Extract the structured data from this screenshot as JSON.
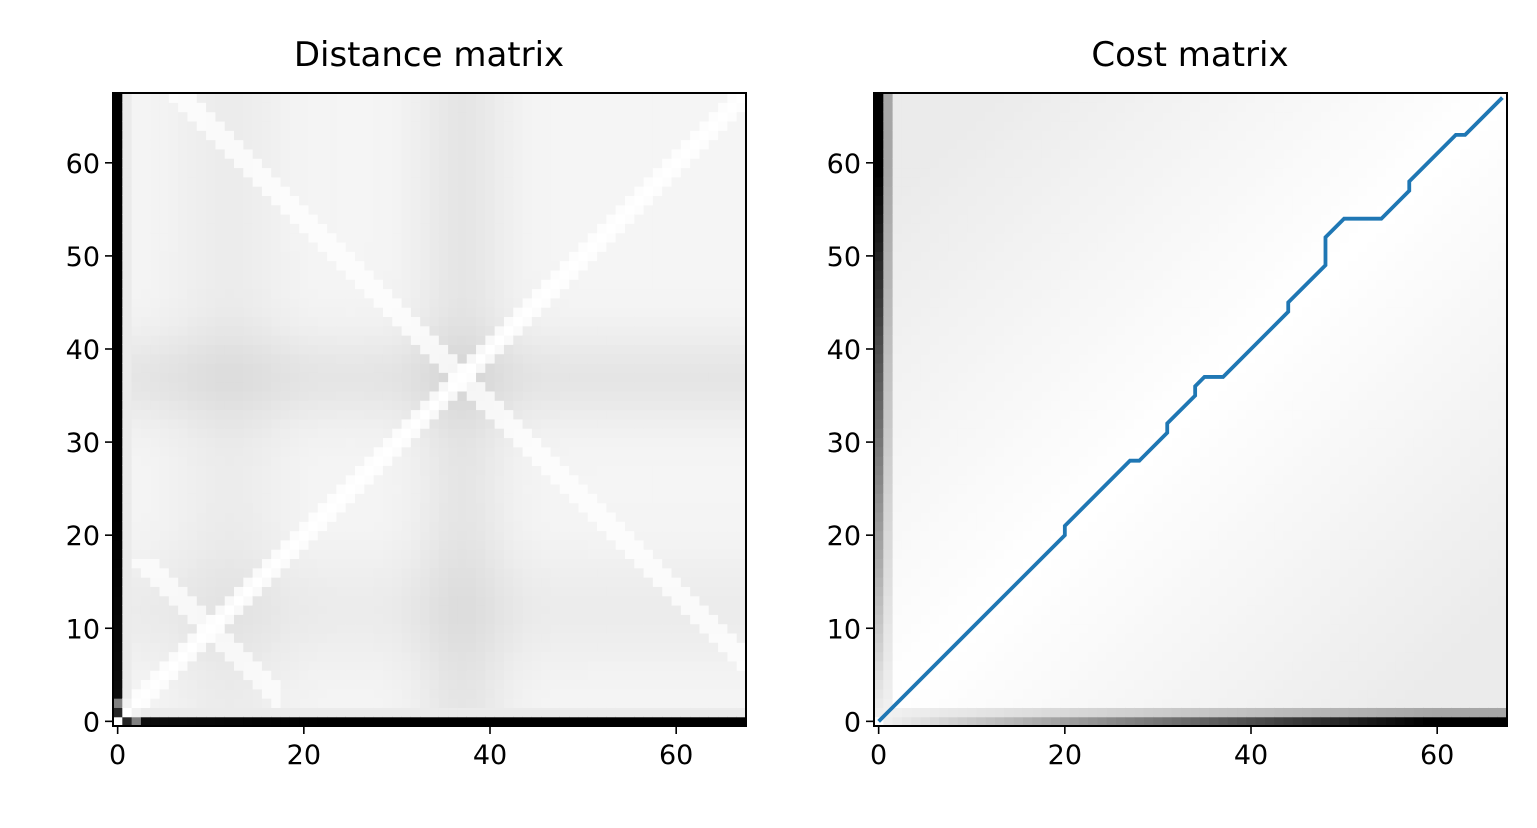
{
  "chart_data": [
    {
      "type": "heatmap",
      "title": "Distance matrix",
      "xlabel": "",
      "ylabel": "",
      "x_ticks": [
        0,
        20,
        40,
        60
      ],
      "y_ticks": [
        0,
        10,
        20,
        30,
        40,
        50,
        60
      ],
      "xlim": [
        -0.5,
        67.5
      ],
      "ylim": [
        -0.5,
        67.5
      ],
      "grid": false,
      "colormap": "gray_r",
      "n": 68,
      "description_of_values": "symmetric distance between frames; zero on the diagonal; near-zero lines crossing at frame 37; dark bands along row 0 and column 0",
      "line": null
    },
    {
      "type": "heatmap",
      "title": "Cost matrix",
      "xlabel": "",
      "ylabel": "",
      "x_ticks": [
        0,
        20,
        40,
        60
      ],
      "y_ticks": [
        0,
        10,
        20,
        30,
        40,
        50,
        60
      ],
      "xlim": [
        -0.5,
        67.5
      ],
      "ylim": [
        -0.5,
        67.5
      ],
      "grid": false,
      "colormap": "gray_r",
      "n": 68,
      "line": {
        "color": "#1f77b4",
        "x": [
          0,
          20,
          20,
          27,
          28,
          31,
          31,
          34,
          34,
          35,
          37,
          44,
          44,
          48,
          48,
          50,
          54,
          57,
          57,
          62,
          63,
          67
        ],
        "y": [
          0,
          20,
          21,
          28,
          28,
          31,
          32,
          35,
          36,
          37,
          37,
          44,
          45,
          49,
          52,
          54,
          54,
          57,
          58,
          63,
          63,
          67
        ]
      }
    }
  ]
}
